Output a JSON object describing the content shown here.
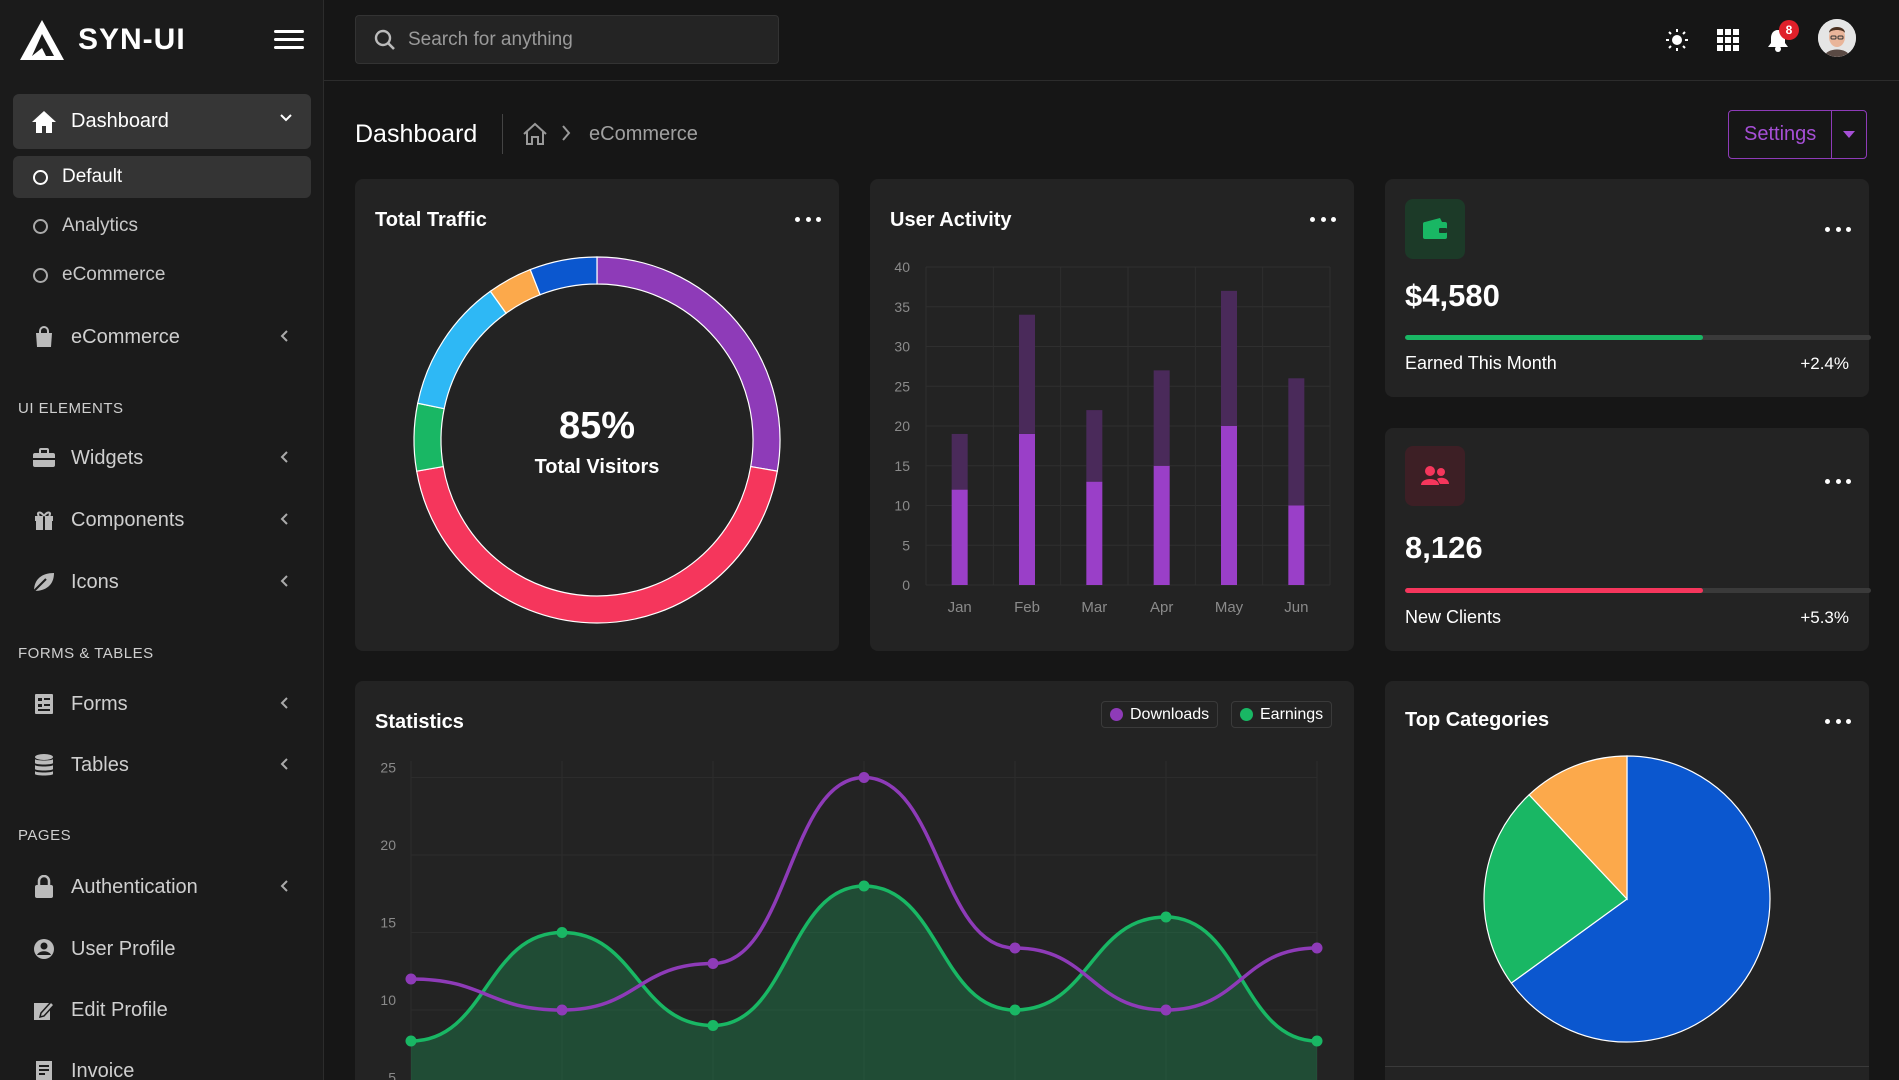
{
  "brand": {
    "name": "SYN-UI"
  },
  "sidebar": {
    "dashboard": {
      "label": "Dashboard",
      "icon": "home-icon"
    },
    "dashboard_sub": [
      {
        "label": "Default",
        "active": true
      },
      {
        "label": "Analytics",
        "active": false
      },
      {
        "label": "eCommerce",
        "active": false
      }
    ],
    "ecommerce": {
      "label": "eCommerce",
      "icon": "shopping-bag-icon"
    },
    "sections": {
      "ui": "UI ELEMENTS",
      "forms": "FORMS & TABLES",
      "pages": "PAGES"
    },
    "ui_items": [
      {
        "label": "Widgets",
        "icon": "briefcase-icon"
      },
      {
        "label": "Components",
        "icon": "gift-icon"
      },
      {
        "label": "Icons",
        "icon": "leaf-icon"
      }
    ],
    "form_items": [
      {
        "label": "Forms",
        "icon": "form-icon"
      },
      {
        "label": "Tables",
        "icon": "database-icon"
      }
    ],
    "page_items": [
      {
        "label": "Authentication",
        "icon": "lock-icon"
      },
      {
        "label": "User Profile",
        "icon": "user-circle-icon"
      },
      {
        "label": "Edit Profile",
        "icon": "edit-icon"
      },
      {
        "label": "Invoice",
        "icon": "invoice-icon"
      }
    ]
  },
  "topbar": {
    "search_placeholder": "Search for anything",
    "notification_count": "8",
    "icons": [
      "sun-icon",
      "apps-grid-icon",
      "bell-icon",
      "avatar"
    ]
  },
  "page": {
    "title": "Dashboard",
    "breadcrumb_current": "eCommerce",
    "settings_label": "Settings"
  },
  "colors": {
    "purple": "#8e3bb8",
    "red": "#f5365c",
    "green": "#19b764",
    "blue": "#0b57cf",
    "lightblue": "#2eb8f5",
    "orange": "#fca94b"
  },
  "traffic": {
    "title": "Total Traffic",
    "center_value": "85%",
    "center_label": "Total Visitors",
    "chart_data": {
      "type": "pie",
      "segments": [
        {
          "value": 28,
          "color": "#8e3bb8"
        },
        {
          "value": 45,
          "color": "#f5365c"
        },
        {
          "value": 6,
          "color": "#19b764"
        },
        {
          "value": 12,
          "color": "#2eb8f5"
        },
        {
          "value": 4,
          "color": "#fca94b"
        },
        {
          "value": 6,
          "color": "#0b57cf"
        }
      ]
    }
  },
  "activity": {
    "title": "User Activity",
    "chart_data": {
      "type": "bar",
      "categories": [
        "Jan",
        "Feb",
        "Mar",
        "Apr",
        "May",
        "Jun"
      ],
      "series": [
        {
          "values": [
            12,
            19,
            13,
            15,
            20,
            10
          ],
          "color": "#9a3fc8"
        },
        {
          "values": [
            7,
            15,
            9,
            12,
            17,
            16
          ],
          "color": "#4a2a5a"
        }
      ],
      "ylim": [
        0,
        40
      ],
      "yticks": [
        0,
        5,
        10,
        15,
        20,
        25,
        30,
        35,
        40
      ],
      "stacked": true,
      "grid": true
    }
  },
  "earned": {
    "value": "$4,580",
    "label": "Earned This Month",
    "change": "+2.4%",
    "progress": 0.64,
    "icon": "wallet-icon"
  },
  "clients": {
    "value": "8,126",
    "label": "New Clients",
    "change": "+5.3%",
    "progress": 0.64,
    "icon": "users-icon"
  },
  "statistics": {
    "title": "Statistics",
    "chart_data": {
      "type": "line",
      "series": [
        {
          "name": "Downloads",
          "values": [
            12,
            10,
            13,
            25,
            14,
            10,
            14
          ],
          "color": "#8e3bb8"
        },
        {
          "name": "Earnings",
          "values": [
            8,
            15,
            9,
            18,
            10,
            16,
            8
          ],
          "color": "#19b764"
        }
      ],
      "yticks": [
        5,
        10,
        15,
        20,
        25
      ],
      "grid": true,
      "legend": "top-right"
    }
  },
  "categories": {
    "title": "Top Categories",
    "chart_data": {
      "type": "pie",
      "slices": [
        {
          "value": 65,
          "color": "#0b57cf"
        },
        {
          "value": 23,
          "color": "#19b764"
        },
        {
          "value": 12,
          "color": "#fca94b"
        }
      ]
    }
  }
}
